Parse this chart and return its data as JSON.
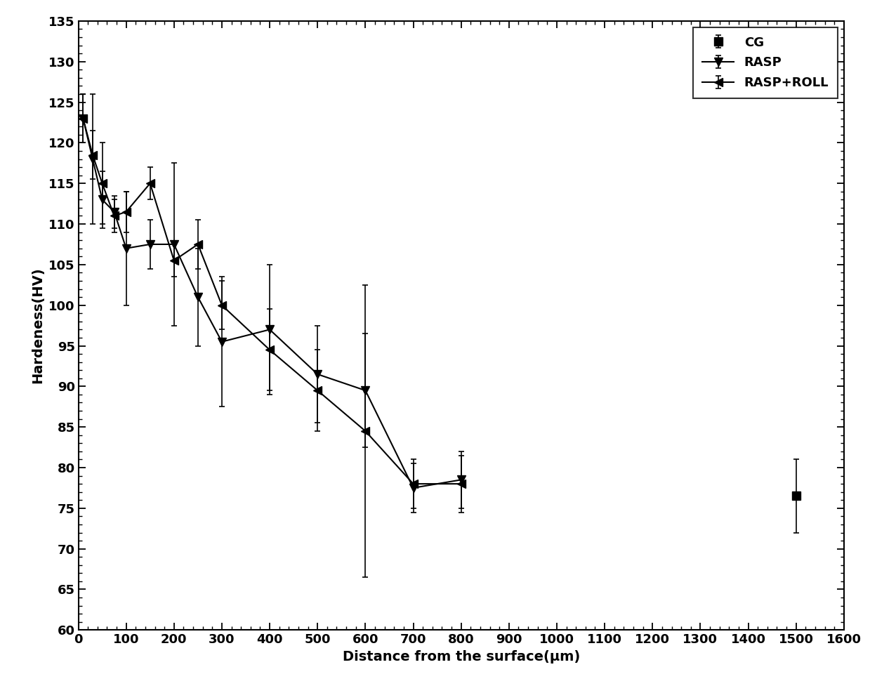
{
  "CG": {
    "x": [
      1500
    ],
    "y": [
      76.5
    ],
    "yerr": [
      4.5
    ]
  },
  "RASP": {
    "x": [
      10,
      30,
      50,
      75,
      100,
      150,
      200,
      250,
      300,
      400,
      500,
      600,
      700,
      800
    ],
    "y": [
      123,
      118,
      113,
      111.5,
      107,
      107.5,
      107.5,
      101,
      95.5,
      97,
      91.5,
      89.5,
      77.5,
      78.5
    ],
    "yerr": [
      3,
      8,
      3.5,
      2,
      7,
      3,
      10,
      6,
      8,
      8,
      6,
      7,
      3,
      3.5
    ]
  },
  "RASP_ROLL": {
    "x": [
      10,
      30,
      50,
      75,
      100,
      150,
      200,
      250,
      300,
      400,
      500,
      600,
      700,
      800
    ],
    "y": [
      123,
      118.5,
      115,
      111,
      111.5,
      115,
      105.5,
      107.5,
      100,
      94.5,
      89.5,
      84.5,
      78,
      78
    ],
    "yerr": [
      3,
      3,
      5,
      2,
      2.5,
      2,
      2,
      3,
      3,
      5,
      5,
      18,
      3,
      3.5
    ]
  },
  "xlabel": "Distance from the surface(μm)",
  "ylabel": "Hardeness(HV)",
  "xlim": [
    0,
    1600
  ],
  "ylim": [
    60,
    135
  ],
  "xticks": [
    0,
    100,
    200,
    300,
    400,
    500,
    600,
    700,
    800,
    900,
    1000,
    1100,
    1200,
    1300,
    1400,
    1500,
    1600
  ],
  "yticks": [
    60,
    65,
    70,
    75,
    80,
    85,
    90,
    95,
    100,
    105,
    110,
    115,
    120,
    125,
    130,
    135
  ],
  "legend_labels": [
    "CG",
    "RASP",
    "RASP+ROLL"
  ],
  "line_color": "#000000",
  "background_color": "#ffffff",
  "axis_fontsize": 14,
  "tick_fontsize": 13,
  "legend_fontsize": 13
}
